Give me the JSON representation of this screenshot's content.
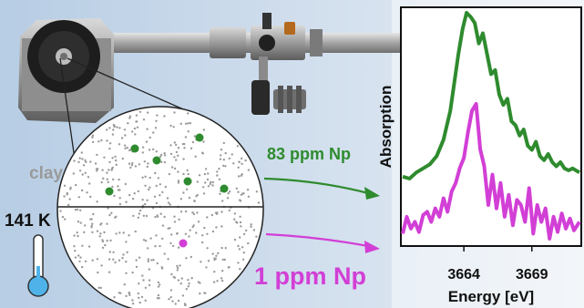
{
  "labels": {
    "clay": "clay",
    "temperature": "141 K",
    "high_conc": "83 ppm Np",
    "low_conc": "1 ppm Np"
  },
  "colors": {
    "green": "#2e8b2e",
    "magenta": "#d23fd6",
    "grey_text": "#9a9a9a",
    "thermometer_bulb": "#4fb3ea",
    "background_gradient_left": "#b7cde4",
    "background_gradient_right": "#e8eef5"
  },
  "chart_data": {
    "type": "line",
    "xlabel": "Energy [eV]",
    "ylabel": "Absorption",
    "x_ticks": [
      3664,
      3669
    ],
    "xlim": [
      3659.5,
      3672.5
    ],
    "y_ticks_shown": false,
    "series": [
      {
        "name": "83 ppm Np",
        "color": "#2e8b2e",
        "x": [
          3659.5,
          3660,
          3660.5,
          3661,
          3661.5,
          3662,
          3662.5,
          3663,
          3663.3,
          3663.6,
          3663.9,
          3664.2,
          3664.5,
          3664.8,
          3665.1,
          3665.4,
          3665.7,
          3666,
          3666.3,
          3666.6,
          3666.9,
          3667.2,
          3667.5,
          3667.8,
          3668.1,
          3668.4,
          3668.7,
          3669,
          3669.3,
          3669.6,
          3669.9,
          3670.2,
          3670.5,
          3670.8,
          3671.1,
          3671.4,
          3671.7,
          3672,
          3672.5
        ],
        "y": [
          0.2,
          0.19,
          0.22,
          0.24,
          0.26,
          0.3,
          0.38,
          0.52,
          0.66,
          0.8,
          0.92,
          1.0,
          0.98,
          0.95,
          0.85,
          0.9,
          0.8,
          0.7,
          0.72,
          0.6,
          0.55,
          0.58,
          0.47,
          0.45,
          0.4,
          0.43,
          0.35,
          0.33,
          0.37,
          0.3,
          0.28,
          0.31,
          0.27,
          0.25,
          0.27,
          0.24,
          0.23,
          0.24,
          0.22
        ]
      },
      {
        "name": "1 ppm Np",
        "color": "#d23fd6",
        "x": [
          3659.5,
          3659.8,
          3660.1,
          3660.4,
          3660.7,
          3661,
          3661.3,
          3661.6,
          3661.9,
          3662.2,
          3662.5,
          3662.8,
          3663.1,
          3663.4,
          3663.7,
          3664,
          3664.3,
          3664.6,
          3664.9,
          3665.2,
          3665.5,
          3665.8,
          3666.1,
          3666.4,
          3666.7,
          3667,
          3667.3,
          3667.6,
          3667.9,
          3668.2,
          3668.5,
          3668.8,
          3669.1,
          3669.4,
          3669.7,
          3670,
          3670.3,
          3670.6,
          3670.9,
          3671.2,
          3671.5,
          3671.8,
          3672.1,
          3672.5
        ],
        "y": [
          -0.05,
          0.05,
          -0.02,
          0.02,
          -0.04,
          0.06,
          0.08,
          0.02,
          0.1,
          0.05,
          0.16,
          0.08,
          0.2,
          0.25,
          0.34,
          0.4,
          0.55,
          0.68,
          0.72,
          0.45,
          0.35,
          0.12,
          0.3,
          0.1,
          0.25,
          0.05,
          0.18,
          0.0,
          0.15,
          0.12,
          0.02,
          0.22,
          -0.05,
          0.12,
          0.02,
          0.1,
          -0.08,
          0.05,
          -0.04,
          0.07,
          -0.02,
          0.04,
          -0.03,
          0.02
        ]
      }
    ]
  }
}
